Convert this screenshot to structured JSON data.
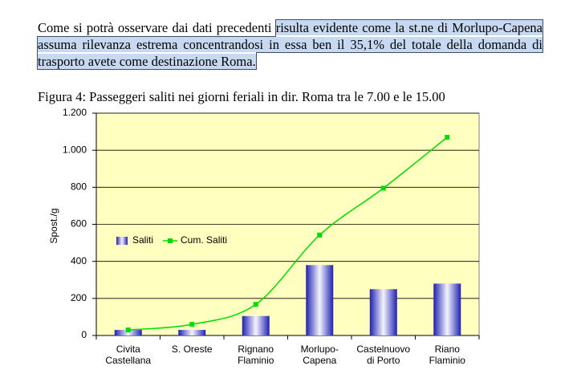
{
  "paragraph": {
    "plain": "Come si potrà osservare dai dati precedenti",
    "highlighted": "risulta evidente come la st.ne di Morlupo-Capena assuma rilevanza estrema concentrandosi in essa ben il 35,1% del totale della domanda di trasporto avete come destinazione Roma."
  },
  "caption": "Figura 4: Passeggeri saliti nei giorni feriali in dir. Roma tra le 7.00 e le 15.00",
  "chart_data": {
    "type": "bar",
    "y_label": "Spost./g",
    "categories": [
      "Civita Castellana",
      "S. Oreste",
      "Rignano Flaminio",
      "Morlupo-Capena",
      "Castelnuovo di Porto",
      "Riano Flaminio"
    ],
    "series": [
      {
        "name": "Saliti",
        "type": "bar",
        "color": "#3333cc",
        "values": [
          30,
          30,
          105,
          380,
          250,
          280
        ]
      },
      {
        "name": "Cum. Saliti",
        "type": "line",
        "color": "#00dd00",
        "values": [
          30,
          60,
          168,
          542,
          795,
          1070
        ]
      }
    ],
    "ylim": [
      0,
      1200
    ],
    "yticks": [
      0,
      200,
      400,
      600,
      800,
      {
        "value": 1000,
        "label": "1.000"
      },
      {
        "value": 1200,
        "label": "1.200"
      }
    ],
    "grid": true,
    "background": "#ffffc0",
    "legend": "left"
  }
}
